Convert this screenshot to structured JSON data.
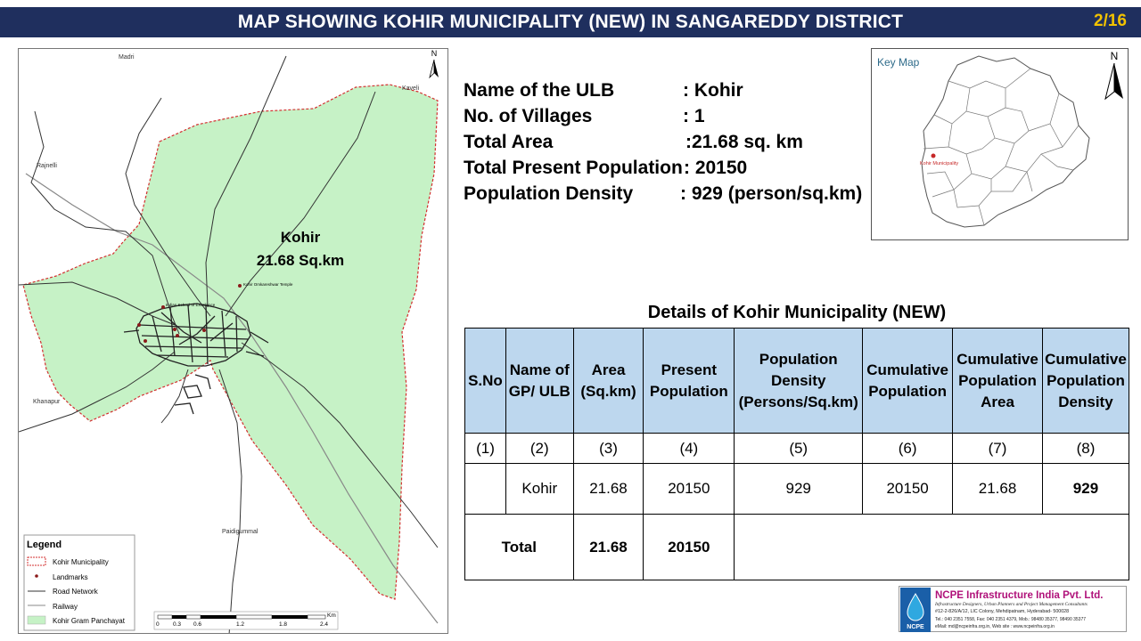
{
  "header": {
    "title": "MAP SHOWING KOHIR MUNICIPALITY (NEW) IN SANGAREDDY DISTRICT",
    "page": "2/16"
  },
  "map": {
    "north": "N",
    "place_labels": {
      "madri": "Madri",
      "kaveli": "Kaveli",
      "rajnelli": "Rajnelli",
      "khanapur": "Khanapur",
      "paidigummal": "Paidigummal"
    },
    "area_label": "Kohir",
    "area_value": "21.68 Sq.km",
    "landmarks": [
      "Kohir Omkareshwar Temple",
      "Indian School of Excellence"
    ],
    "legend": {
      "title": "Legend",
      "items": [
        "Kohir Municipality",
        "Landmarks",
        "Road Network",
        "Railway",
        "Kohir Gram Panchayat"
      ]
    },
    "scale": {
      "ticks": [
        "0",
        "0.3",
        "0.6",
        "1.2",
        "1.8",
        "2.4"
      ],
      "unit": "Km"
    },
    "colors": {
      "gram_panchayat": "#c6f2c6",
      "boundary": "#d32f2f",
      "road": "#333333",
      "railway": "#888888"
    }
  },
  "info": {
    "rows": [
      {
        "label": "Name of the ULB",
        "value": ": Kohir"
      },
      {
        "label": "No. of Villages",
        "value": ": 1"
      },
      {
        "label": "Total Area",
        "value": ":21.68 sq. km"
      },
      {
        "label": "Total Present Population",
        "value": ": 20150"
      },
      {
        "label": "Population Density",
        "value": ": 929 (person/sq.km)"
      }
    ]
  },
  "keymap": {
    "title": "Key Map",
    "north": "N",
    "marker_label": "Kohir Municipality"
  },
  "details": {
    "title": "Details of Kohir Municipality (NEW)",
    "headers": [
      "S.No",
      "Name of GP/ ULB",
      "Area (Sq.km)",
      "Present Population",
      "Population Density (Persons/Sq.km)",
      "Cumulative Population",
      "Cumulative Population Area",
      "Cumulative Population Density"
    ],
    "numbers": [
      "(1)",
      "(2)",
      "(3)",
      "(4)",
      "(5)",
      "(6)",
      "(7)",
      "(8)"
    ],
    "row": [
      "",
      "Kohir",
      "21.68",
      "20150",
      "929",
      "20150",
      "21.68",
      "929"
    ],
    "total": {
      "label": "Total",
      "area": "21.68",
      "population": "20150"
    }
  },
  "logo": {
    "company": "NCPE Infrastructure India Pvt. Ltd.",
    "tagline": "Infrastructure Designers, Urban Planners and Project Management Consultants",
    "address": "#12-2-826/A/12, LIC Colony, Mehdipatnam, Hyderabad- 500028",
    "phone": "Tel.: 040 2351 7558, Fax: 040 2351 4379, Mob.: 98480 35377, 98490 35377",
    "email": "eMail: md@ncpeinfra.org.in, Web site : www.ncpeinfra.org.in",
    "short": "NCPE",
    "brand_color": "#b0127a"
  }
}
